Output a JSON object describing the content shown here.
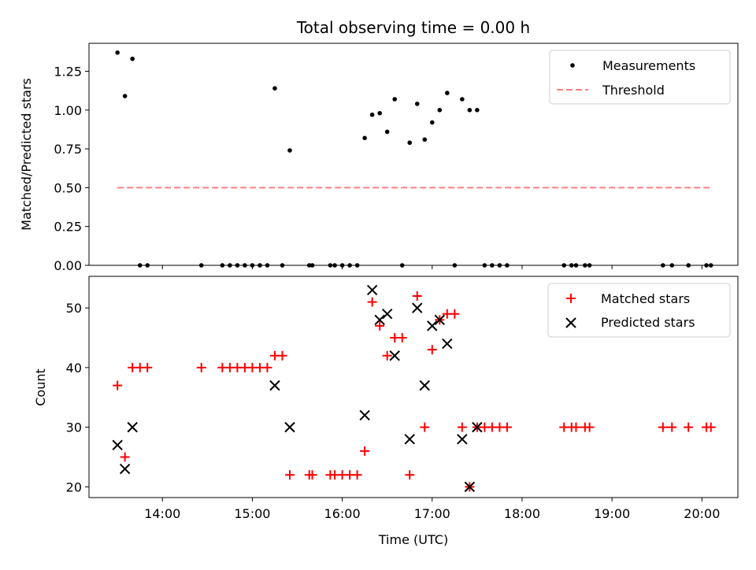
{
  "chart_data": {
    "title": "Total observing time = 0.00 h",
    "xlabel": "Time (UTC)",
    "x_ticks": [
      "14:00",
      "15:00",
      "16:00",
      "17:00",
      "18:00",
      "19:00",
      "20:00"
    ],
    "xlim": [
      "13:11",
      "20:24"
    ],
    "top": {
      "type": "scatter",
      "ylabel": "Matched/Predicted stars",
      "ylim": [
        0,
        1.43
      ],
      "y_ticks": [
        "0.00",
        "0.25",
        "0.50",
        "0.75",
        "1.00",
        "1.25"
      ],
      "legend_position": "top-right",
      "series": [
        {
          "name": "Measurements",
          "color": "#000000",
          "marker": "dot",
          "points": [
            [
              "13:30",
              1.37
            ],
            [
              "13:35",
              1.09
            ],
            [
              "13:40",
              1.33
            ],
            [
              "13:45",
              0.0
            ],
            [
              "13:50",
              0.0
            ],
            [
              "14:26",
              0.0
            ],
            [
              "14:40",
              0.0
            ],
            [
              "14:45",
              0.0
            ],
            [
              "14:50",
              0.0
            ],
            [
              "14:55",
              0.0
            ],
            [
              "15:00",
              0.0
            ],
            [
              "15:05",
              0.0
            ],
            [
              "15:10",
              0.0
            ],
            [
              "15:15",
              1.14
            ],
            [
              "15:20",
              0.0
            ],
            [
              "15:25",
              0.74
            ],
            [
              "15:38",
              0.0
            ],
            [
              "15:40",
              0.0
            ],
            [
              "15:52",
              0.0
            ],
            [
              "15:55",
              0.0
            ],
            [
              "16:00",
              0.0
            ],
            [
              "16:05",
              0.0
            ],
            [
              "16:10",
              0.0
            ],
            [
              "16:15",
              0.82
            ],
            [
              "16:20",
              0.97
            ],
            [
              "16:25",
              0.98
            ],
            [
              "16:30",
              0.86
            ],
            [
              "16:35",
              1.07
            ],
            [
              "16:40",
              0.0
            ],
            [
              "16:45",
              0.79
            ],
            [
              "16:50",
              1.04
            ],
            [
              "16:55",
              0.81
            ],
            [
              "17:00",
              0.92
            ],
            [
              "17:05",
              1.0
            ],
            [
              "17:10",
              1.11
            ],
            [
              "17:15",
              0.0
            ],
            [
              "17:20",
              1.07
            ],
            [
              "17:25",
              1.0
            ],
            [
              "17:30",
              1.0
            ],
            [
              "17:35",
              0.0
            ],
            [
              "17:40",
              0.0
            ],
            [
              "17:45",
              0.0
            ],
            [
              "17:50",
              0.0
            ],
            [
              "18:28",
              0.0
            ],
            [
              "18:33",
              0.0
            ],
            [
              "18:36",
              0.0
            ],
            [
              "18:42",
              0.0
            ],
            [
              "18:45",
              0.0
            ],
            [
              "19:34",
              0.0
            ],
            [
              "19:40",
              0.0
            ],
            [
              "19:51",
              0.0
            ],
            [
              "20:03",
              0.0
            ],
            [
              "20:06",
              0.0
            ]
          ]
        },
        {
          "name": "Threshold",
          "color": "#ff7f7f",
          "style": "dashed-line",
          "points": [
            [
              "13:30",
              0.5
            ],
            [
              "20:06",
              0.5
            ]
          ]
        }
      ]
    },
    "bottom": {
      "type": "scatter",
      "ylabel": "Count",
      "ylim": [
        18.2,
        55.3
      ],
      "y_ticks": [
        "20",
        "30",
        "40",
        "50"
      ],
      "legend_position": "top-right",
      "series": [
        {
          "name": "Matched stars",
          "color": "#ff0000",
          "marker": "plus",
          "points": [
            [
              "13:30",
              37
            ],
            [
              "13:35",
              25
            ],
            [
              "13:40",
              40
            ],
            [
              "13:45",
              40
            ],
            [
              "13:50",
              40
            ],
            [
              "14:26",
              40
            ],
            [
              "14:40",
              40
            ],
            [
              "14:45",
              40
            ],
            [
              "14:50",
              40
            ],
            [
              "14:55",
              40
            ],
            [
              "15:00",
              40
            ],
            [
              "15:05",
              40
            ],
            [
              "15:10",
              40
            ],
            [
              "15:15",
              42
            ],
            [
              "15:20",
              42
            ],
            [
              "15:25",
              22
            ],
            [
              "15:38",
              22
            ],
            [
              "15:40",
              22
            ],
            [
              "15:52",
              22
            ],
            [
              "15:55",
              22
            ],
            [
              "16:00",
              22
            ],
            [
              "16:05",
              22
            ],
            [
              "16:10",
              22
            ],
            [
              "16:15",
              26
            ],
            [
              "16:20",
              51
            ],
            [
              "16:25",
              47
            ],
            [
              "16:30",
              42
            ],
            [
              "16:35",
              45
            ],
            [
              "16:40",
              45
            ],
            [
              "16:45",
              22
            ],
            [
              "16:50",
              52
            ],
            [
              "16:55",
              30
            ],
            [
              "17:00",
              43
            ],
            [
              "17:05",
              48
            ],
            [
              "17:10",
              49
            ],
            [
              "17:15",
              49
            ],
            [
              "17:20",
              30
            ],
            [
              "17:25",
              20
            ],
            [
              "17:30",
              30
            ],
            [
              "17:35",
              30
            ],
            [
              "17:40",
              30
            ],
            [
              "17:45",
              30
            ],
            [
              "17:50",
              30
            ],
            [
              "18:28",
              30
            ],
            [
              "18:33",
              30
            ],
            [
              "18:36",
              30
            ],
            [
              "18:42",
              30
            ],
            [
              "18:45",
              30
            ],
            [
              "19:34",
              30
            ],
            [
              "19:40",
              30
            ],
            [
              "19:51",
              30
            ],
            [
              "20:03",
              30
            ],
            [
              "20:06",
              30
            ]
          ]
        },
        {
          "name": "Predicted stars",
          "color": "#000000",
          "marker": "x",
          "points": [
            [
              "13:30",
              27
            ],
            [
              "13:35",
              23
            ],
            [
              "13:40",
              30
            ],
            [
              "15:15",
              37
            ],
            [
              "15:25",
              30
            ],
            [
              "16:15",
              32
            ],
            [
              "16:20",
              53
            ],
            [
              "16:25",
              48
            ],
            [
              "16:30",
              49
            ],
            [
              "16:35",
              42
            ],
            [
              "16:45",
              28
            ],
            [
              "16:50",
              50
            ],
            [
              "16:55",
              37
            ],
            [
              "17:00",
              47
            ],
            [
              "17:05",
              48
            ],
            [
              "17:10",
              44
            ],
            [
              "17:20",
              28
            ],
            [
              "17:25",
              20
            ],
            [
              "17:30",
              30
            ]
          ]
        }
      ]
    }
  }
}
